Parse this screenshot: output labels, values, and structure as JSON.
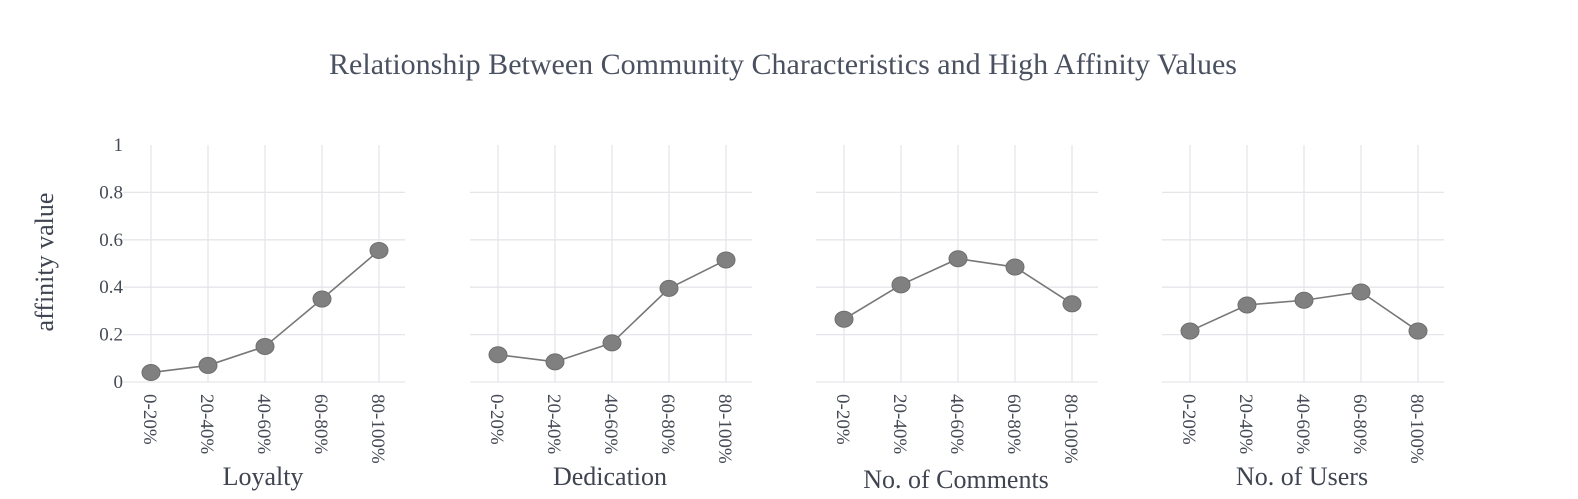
{
  "title": "Relationship Between Community Characteristics and High Affinity Values",
  "ylabel": "affinity value",
  "colors": {
    "marker": "#808080",
    "line": "#777777",
    "grid": "#e4e6ea",
    "text": "#454a55"
  },
  "chart_data": {
    "type": "line",
    "title": "Relationship Between Community Characteristics and High Affinity Values",
    "ylabel": "affinity value",
    "ylim": [
      0,
      1
    ],
    "yticks": [
      "0",
      "0.2",
      "0.4",
      "0.6",
      "0.8",
      "1"
    ],
    "grid": true,
    "categories": [
      "0-20%",
      "20-40%",
      "40-60%",
      "60-80%",
      "80-100%"
    ],
    "panels": [
      {
        "xlabel": "Loyalty",
        "values": [
          0.04,
          0.07,
          0.15,
          0.35,
          0.555
        ]
      },
      {
        "xlabel": "Dedication",
        "values": [
          0.115,
          0.085,
          0.165,
          0.395,
          0.515
        ]
      },
      {
        "xlabel": "No. of Comments",
        "values": [
          0.265,
          0.41,
          0.52,
          0.485,
          0.33
        ]
      },
      {
        "xlabel": "No. of Users",
        "values": [
          0.215,
          0.325,
          0.345,
          0.38,
          0.215
        ]
      }
    ]
  }
}
